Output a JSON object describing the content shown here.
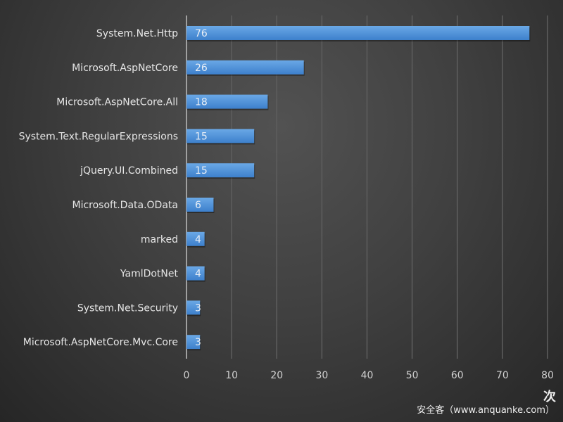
{
  "chart_data": {
    "type": "bar",
    "orientation": "horizontal",
    "categories": [
      "System.Net.Http",
      "Microsoft.AspNetCore",
      "Microsoft.AspNetCore.All",
      "System.Text.RegularExpressions",
      "jQuery.UI.Combined",
      "Microsoft.Data.OData",
      "marked",
      "YamlDotNet",
      "System.Net.Security",
      "Microsoft.AspNetCore.Mvc.Core"
    ],
    "values": [
      76,
      26,
      18,
      15,
      15,
      6,
      4,
      4,
      3,
      3
    ],
    "xlim": [
      0,
      80
    ],
    "xticks": [
      0,
      10,
      20,
      30,
      40,
      50,
      60,
      70,
      80
    ],
    "xlabel": "次",
    "grid": true,
    "bar_color": "#4a8fd8"
  },
  "watermark": "安全客（www.anquanke.com）"
}
